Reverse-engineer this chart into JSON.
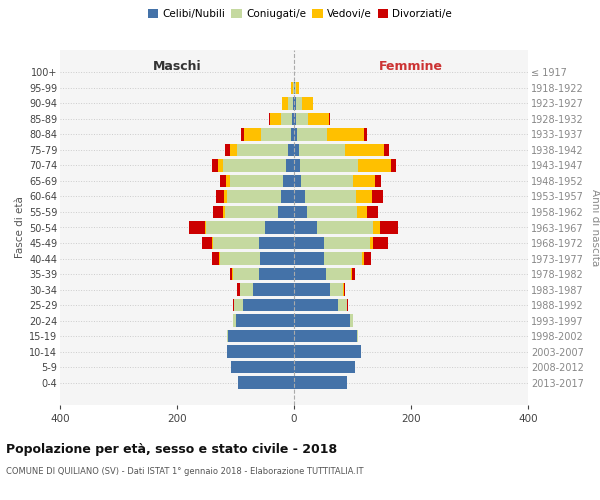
{
  "age_groups": [
    "0-4",
    "5-9",
    "10-14",
    "15-19",
    "20-24",
    "25-29",
    "30-34",
    "35-39",
    "40-44",
    "45-49",
    "50-54",
    "55-59",
    "60-64",
    "65-69",
    "70-74",
    "75-79",
    "80-84",
    "85-89",
    "90-94",
    "95-99",
    "100+"
  ],
  "birth_years": [
    "2013-2017",
    "2008-2012",
    "2003-2007",
    "1998-2002",
    "1993-1997",
    "1988-1992",
    "1983-1987",
    "1978-1982",
    "1973-1977",
    "1968-1972",
    "1963-1967",
    "1958-1962",
    "1953-1957",
    "1948-1952",
    "1943-1947",
    "1938-1942",
    "1933-1937",
    "1928-1932",
    "1923-1927",
    "1918-1922",
    "≤ 1917"
  ],
  "male": {
    "celibi": [
      95,
      108,
      115,
      112,
      100,
      88,
      70,
      60,
      58,
      60,
      50,
      28,
      22,
      18,
      14,
      10,
      5,
      3,
      2,
      0,
      0
    ],
    "coniugati": [
      0,
      0,
      0,
      2,
      5,
      14,
      22,
      45,
      68,
      78,
      100,
      90,
      92,
      92,
      108,
      88,
      52,
      20,
      8,
      2,
      0
    ],
    "vedovi": [
      0,
      0,
      0,
      0,
      0,
      1,
      1,
      1,
      2,
      2,
      2,
      3,
      5,
      6,
      8,
      12,
      28,
      18,
      10,
      3,
      0
    ],
    "divorziati": [
      0,
      0,
      0,
      0,
      0,
      2,
      5,
      3,
      12,
      18,
      28,
      18,
      15,
      10,
      10,
      8,
      5,
      2,
      0,
      0,
      0
    ]
  },
  "female": {
    "nubili": [
      90,
      105,
      115,
      108,
      95,
      75,
      62,
      55,
      52,
      52,
      40,
      22,
      18,
      12,
      10,
      8,
      5,
      4,
      3,
      2,
      0
    ],
    "coniugate": [
      0,
      0,
      0,
      2,
      5,
      15,
      22,
      42,
      65,
      78,
      95,
      85,
      88,
      88,
      100,
      80,
      52,
      20,
      10,
      2,
      0
    ],
    "vedove": [
      0,
      0,
      0,
      0,
      0,
      1,
      1,
      2,
      3,
      5,
      12,
      18,
      28,
      38,
      55,
      65,
      62,
      35,
      20,
      4,
      0
    ],
    "divorziate": [
      0,
      0,
      0,
      0,
      0,
      2,
      3,
      5,
      12,
      25,
      30,
      18,
      18,
      10,
      10,
      10,
      5,
      2,
      0,
      0,
      0
    ]
  },
  "colors": {
    "celibi": "#4472a8",
    "coniugati": "#c5d9a0",
    "vedovi": "#ffc000",
    "divorziati": "#cc0000"
  },
  "legend_labels": [
    "Celibi/Nubili",
    "Coniugati/e",
    "Vedovi/e",
    "Divorziati/e"
  ],
  "title": "Popolazione per età, sesso e stato civile - 2018",
  "subtitle": "COMUNE DI QUILIANO (SV) - Dati ISTAT 1° gennaio 2018 - Elaborazione TUTTITALIA.IT",
  "xlabel_left": "Maschi",
  "xlabel_right": "Femmine",
  "ylabel_left": "Fasce di età",
  "ylabel_right": "Anni di nascita",
  "xlim": 400,
  "background_color": "#f5f5f5"
}
